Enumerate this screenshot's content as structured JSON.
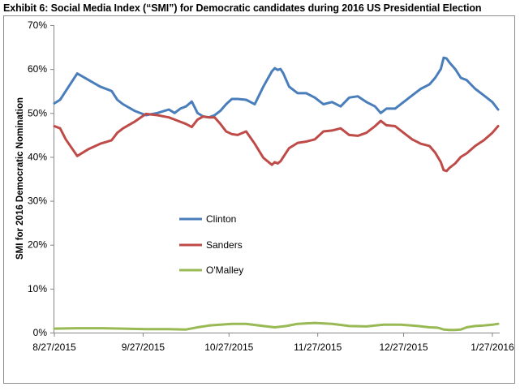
{
  "chart_data": {
    "type": "line",
    "title": "Exhibit 6:  Social Media Index (“SMI”) for Democratic candidates during 2016 US Presidential Election",
    "ylabel": "SMI for 2016 Democratic Nomination",
    "xlabel": "",
    "ylim": [
      0,
      70
    ],
    "yticks": [
      "0%",
      "10%",
      "20%",
      "30%",
      "40%",
      "50%",
      "60%",
      "70%"
    ],
    "xticks": [
      "8/27/2015",
      "9/27/2015",
      "10/27/2015",
      "11/27/2015",
      "12/27/2015",
      "1/27/2016"
    ],
    "xrange": [
      "2015-08-27",
      "2016-01-29"
    ],
    "grid": false,
    "legend_position": "center-left",
    "series": [
      {
        "name": "Clinton",
        "color": "#4a7ebb",
        "x": [
          "2015-08-27",
          "2015-08-29",
          "2015-08-31",
          "2015-09-04",
          "2015-09-08",
          "2015-09-12",
          "2015-09-16",
          "2015-09-18",
          "2015-09-20",
          "2015-09-24",
          "2015-09-28",
          "2015-10-02",
          "2015-10-06",
          "2015-10-08",
          "2015-10-10",
          "2015-10-12",
          "2015-10-14",
          "2015-10-16",
          "2015-10-18",
          "2015-10-20",
          "2015-10-22",
          "2015-10-24",
          "2015-10-26",
          "2015-10-28",
          "2015-10-30",
          "2015-11-02",
          "2015-11-05",
          "2015-11-08",
          "2015-11-11",
          "2015-11-12",
          "2015-11-13",
          "2015-11-14",
          "2015-11-15",
          "2015-11-17",
          "2015-11-20",
          "2015-11-23",
          "2015-11-26",
          "2015-11-29",
          "2015-12-02",
          "2015-12-05",
          "2015-12-08",
          "2015-12-11",
          "2015-12-14",
          "2015-12-17",
          "2015-12-19",
          "2015-12-21",
          "2015-12-24",
          "2015-12-27",
          "2015-12-30",
          "2016-01-02",
          "2016-01-05",
          "2016-01-07",
          "2016-01-09",
          "2016-01-10",
          "2016-01-11",
          "2016-01-12",
          "2016-01-14",
          "2016-01-16",
          "2016-01-18",
          "2016-01-21",
          "2016-01-24",
          "2016-01-27",
          "2016-01-29"
        ],
        "values": [
          52.2,
          53.0,
          55.0,
          59.0,
          57.5,
          56.0,
          55.0,
          53.0,
          52.0,
          50.5,
          49.5,
          50.0,
          50.8,
          50.0,
          51.0,
          51.5,
          52.6,
          50.0,
          49.2,
          49.0,
          49.5,
          50.5,
          52.0,
          53.2,
          53.2,
          53.0,
          52.0,
          56.0,
          59.5,
          60.2,
          59.8,
          60.0,
          59.0,
          56.0,
          54.5,
          54.5,
          53.5,
          52.0,
          52.5,
          51.5,
          53.5,
          53.8,
          52.5,
          51.5,
          50.0,
          51.0,
          51.0,
          52.5,
          54.0,
          55.5,
          56.5,
          58.0,
          60.0,
          62.6,
          62.4,
          61.5,
          60.0,
          58.0,
          57.5,
          55.5,
          54.0,
          52.5,
          50.8
        ]
      },
      {
        "name": "Sanders",
        "color": "#be4b48",
        "x": [
          "2015-08-27",
          "2015-08-29",
          "2015-08-31",
          "2015-09-04",
          "2015-09-08",
          "2015-09-12",
          "2015-09-16",
          "2015-09-18",
          "2015-09-20",
          "2015-09-24",
          "2015-09-28",
          "2015-10-02",
          "2015-10-06",
          "2015-10-08",
          "2015-10-10",
          "2015-10-12",
          "2015-10-14",
          "2015-10-16",
          "2015-10-18",
          "2015-10-20",
          "2015-10-22",
          "2015-10-24",
          "2015-10-26",
          "2015-10-28",
          "2015-10-30",
          "2015-11-02",
          "2015-11-05",
          "2015-11-08",
          "2015-11-11",
          "2015-11-12",
          "2015-11-13",
          "2015-11-14",
          "2015-11-15",
          "2015-11-17",
          "2015-11-20",
          "2015-11-23",
          "2015-11-26",
          "2015-11-29",
          "2015-12-02",
          "2015-12-05",
          "2015-12-08",
          "2015-12-11",
          "2015-12-14",
          "2015-12-17",
          "2015-12-19",
          "2015-12-21",
          "2015-12-24",
          "2015-12-27",
          "2015-12-30",
          "2016-01-02",
          "2016-01-05",
          "2016-01-07",
          "2016-01-09",
          "2016-01-10",
          "2016-01-11",
          "2016-01-12",
          "2016-01-14",
          "2016-01-16",
          "2016-01-18",
          "2016-01-21",
          "2016-01-24",
          "2016-01-27",
          "2016-01-29"
        ],
        "values": [
          47.0,
          46.5,
          44.0,
          40.2,
          41.8,
          43.0,
          43.8,
          45.5,
          46.5,
          48.0,
          49.8,
          49.5,
          49.0,
          48.5,
          48.0,
          47.5,
          46.8,
          48.5,
          49.2,
          49.0,
          49.0,
          47.5,
          45.8,
          45.2,
          45.0,
          45.8,
          43.0,
          39.8,
          38.2,
          38.8,
          38.5,
          39.0,
          40.0,
          42.0,
          43.2,
          43.5,
          44.0,
          45.8,
          46.0,
          46.5,
          45.0,
          44.8,
          45.5,
          47.0,
          48.2,
          47.2,
          47.0,
          45.5,
          44.0,
          43.0,
          42.5,
          41.0,
          38.8,
          37.0,
          36.8,
          37.5,
          38.5,
          40.0,
          40.8,
          42.5,
          43.8,
          45.5,
          47.0
        ]
      },
      {
        "name": "O'Malley",
        "color": "#98b954",
        "x": [
          "2015-08-27",
          "2015-09-04",
          "2015-09-12",
          "2015-09-20",
          "2015-09-28",
          "2015-10-06",
          "2015-10-12",
          "2015-10-16",
          "2015-10-20",
          "2015-10-24",
          "2015-10-28",
          "2015-11-02",
          "2015-11-08",
          "2015-11-12",
          "2015-11-16",
          "2015-11-20",
          "2015-11-26",
          "2015-12-02",
          "2015-12-08",
          "2015-12-14",
          "2015-12-20",
          "2015-12-26",
          "2016-01-01",
          "2016-01-05",
          "2016-01-08",
          "2016-01-10",
          "2016-01-12",
          "2016-01-14",
          "2016-01-16",
          "2016-01-18",
          "2016-01-21",
          "2016-01-24",
          "2016-01-27",
          "2016-01-29"
        ],
        "values": [
          0.9,
          1.0,
          1.0,
          0.9,
          0.8,
          0.8,
          0.7,
          1.2,
          1.6,
          1.8,
          2.0,
          2.0,
          1.5,
          1.2,
          1.5,
          2.0,
          2.2,
          2.0,
          1.5,
          1.4,
          1.8,
          1.8,
          1.5,
          1.2,
          1.1,
          0.7,
          0.6,
          0.6,
          0.7,
          1.2,
          1.5,
          1.6,
          1.8,
          2.0
        ]
      }
    ]
  }
}
